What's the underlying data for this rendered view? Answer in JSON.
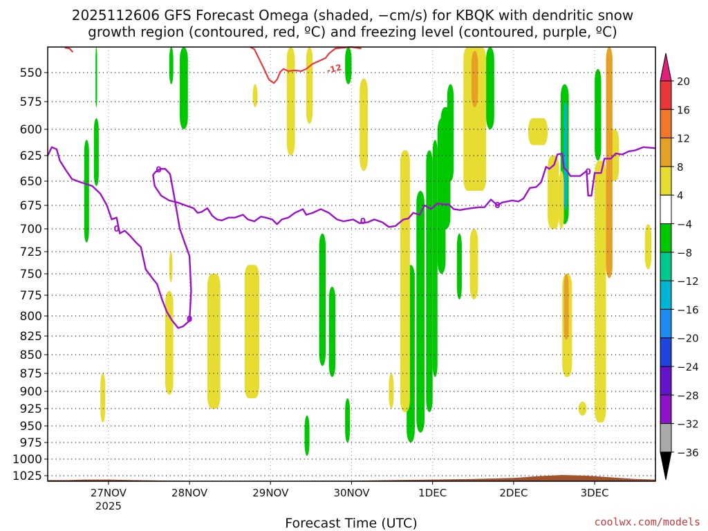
{
  "title": {
    "line1": "2025112606 GFS Forecast Omega (shaded, −cm/s) for KBQK with dendritic snow",
    "line2": "growth region (contoured, red, ºC) and freezing level (contoured, purple, ºC)"
  },
  "xlabel": "Forecast Time (UTC)",
  "credit": "coolwx.com/models",
  "chart_data": {
    "type": "heatmap",
    "title": "2025112606 GFS Forecast Omega (shaded, −cm/s) for KBQK with dendritic snow growth region (contoured, red, ºC) and freezing level (contoured, purple, ºC)",
    "xlabel": "Forecast Time (UTC)",
    "ylabel": "",
    "x_unit": "days after 2025-11-26 00Z (display helper: 0 = 27NOV 00Z)",
    "xlim": [
      -0.75,
      6.75
    ],
    "ylim": [
      515,
      1035
    ],
    "y_scale": "pressure (hPa), decreasing upward",
    "grid": true,
    "y_ticks": [
      550,
      575,
      600,
      625,
      650,
      675,
      700,
      725,
      750,
      775,
      800,
      825,
      850,
      875,
      900,
      925,
      950,
      975,
      1000,
      1025
    ],
    "x_ticks": [
      {
        "x": 0,
        "label": "27NOV",
        "sub": "2025"
      },
      {
        "x": 1,
        "label": "28NOV",
        "sub": ""
      },
      {
        "x": 2,
        "label": "29NOV",
        "sub": ""
      },
      {
        "x": 3,
        "label": "30NOV",
        "sub": ""
      },
      {
        "x": 4,
        "label": "1DEC",
        "sub": ""
      },
      {
        "x": 5,
        "label": "2DEC",
        "sub": ""
      },
      {
        "x": 6,
        "label": "3DEC",
        "sub": ""
      }
    ],
    "colorbar": {
      "labels": [
        "20",
        "16",
        "12",
        "8",
        "4",
        "−4",
        "−8",
        "−12",
        "−16",
        "−20",
        "−24",
        "−28",
        "−32",
        "−36"
      ],
      "colors": [
        "#e8383c",
        "#f07828",
        "#e6a028",
        "#e6dc32",
        "#ffffff",
        "#00c800",
        "#00c88c",
        "#00b4d2",
        "#1e8cf0",
        "#1e46dc",
        "#6414c8",
        "#8c14c8",
        "#aaaaaa"
      ],
      "top_arrow_color": "#e0207a",
      "bottom_arrow_color": "#000000"
    },
    "omega_cells": [
      {
        "x0": -0.16,
        "x1": -0.14,
        "p0": 515,
        "p1": 580,
        "v": -6
      },
      {
        "x0": -0.3,
        "x1": -0.24,
        "p0": 610,
        "p1": 715,
        "v": -6
      },
      {
        "x0": -0.18,
        "x1": -0.12,
        "p0": 590,
        "p1": 655,
        "v": -6
      },
      {
        "x0": 0.75,
        "x1": 0.8,
        "p0": 515,
        "p1": 560,
        "v": -6
      },
      {
        "x0": 0.88,
        "x1": 0.98,
        "p0": 515,
        "p1": 600,
        "v": -6
      },
      {
        "x0": 2.92,
        "x1": 3.0,
        "p0": 515,
        "p1": 560,
        "v": -6
      },
      {
        "x0": 2.6,
        "x1": 2.68,
        "p0": 705,
        "p1": 865,
        "v": -6
      },
      {
        "x0": 2.72,
        "x1": 2.8,
        "p0": 765,
        "p1": 880,
        "v": -6
      },
      {
        "x0": 2.42,
        "x1": 2.48,
        "p0": 935,
        "p1": 995,
        "v": -6
      },
      {
        "x0": 2.92,
        "x1": 2.98,
        "p0": 910,
        "p1": 975,
        "v": -6
      },
      {
        "x0": 3.68,
        "x1": 3.78,
        "p0": 740,
        "p1": 975,
        "v": -6
      },
      {
        "x0": 3.8,
        "x1": 3.9,
        "p0": 660,
        "p1": 960,
        "v": -6
      },
      {
        "x0": 3.92,
        "x1": 4.0,
        "p0": 620,
        "p1": 930,
        "v": -6
      },
      {
        "x0": 4.0,
        "x1": 4.06,
        "p0": 610,
        "p1": 880,
        "v": -6
      },
      {
        "x0": 4.06,
        "x1": 4.16,
        "p0": 590,
        "p1": 750,
        "v": -6
      },
      {
        "x0": 4.1,
        "x1": 4.22,
        "p0": 580,
        "p1": 700,
        "v": -6
      },
      {
        "x0": 4.18,
        "x1": 4.26,
        "p0": 560,
        "p1": 650,
        "v": -6
      },
      {
        "x0": 4.3,
        "x1": 4.36,
        "p0": 705,
        "p1": 780,
        "v": -6
      },
      {
        "x0": 4.66,
        "x1": 4.76,
        "p0": 515,
        "p1": 600,
        "v": -6
      },
      {
        "x0": 5.58,
        "x1": 5.68,
        "p0": 560,
        "p1": 695,
        "v": -6
      },
      {
        "x0": 6.0,
        "x1": 6.08,
        "p0": 545,
        "p1": 630,
        "v": -6
      },
      {
        "x0": 5.62,
        "x1": 5.66,
        "p0": 575,
        "p1": 680,
        "v": -12
      },
      {
        "x0": -0.1,
        "x1": -0.04,
        "p0": 875,
        "p1": 945,
        "v": 6
      },
      {
        "x0": 1.22,
        "x1": 1.38,
        "p0": 750,
        "p1": 925,
        "v": 6
      },
      {
        "x0": 0.7,
        "x1": 0.8,
        "p0": 770,
        "p1": 905,
        "v": 6
      },
      {
        "x0": 0.75,
        "x1": 0.79,
        "p0": 725,
        "p1": 760,
        "v": 6
      },
      {
        "x0": 1.68,
        "x1": 1.86,
        "p0": 740,
        "p1": 910,
        "v": 6
      },
      {
        "x0": 1.78,
        "x1": 1.84,
        "p0": 560,
        "p1": 580,
        "v": 6
      },
      {
        "x0": 2.2,
        "x1": 2.3,
        "p0": 515,
        "p1": 625,
        "v": 6
      },
      {
        "x0": 2.44,
        "x1": 2.52,
        "p0": 515,
        "p1": 595,
        "v": 6
      },
      {
        "x0": 3.1,
        "x1": 3.2,
        "p0": 555,
        "p1": 640,
        "v": 6
      },
      {
        "x0": 3.46,
        "x1": 3.52,
        "p0": 875,
        "p1": 925,
        "v": 6
      },
      {
        "x0": 3.6,
        "x1": 3.72,
        "p0": 620,
        "p1": 930,
        "v": 6
      },
      {
        "x0": 4.38,
        "x1": 4.66,
        "p0": 515,
        "p1": 660,
        "v": 6
      },
      {
        "x0": 4.46,
        "x1": 4.56,
        "p0": 700,
        "p1": 780,
        "v": 6
      },
      {
        "x0": 5.18,
        "x1": 5.42,
        "p0": 590,
        "p1": 615,
        "v": 6
      },
      {
        "x0": 5.42,
        "x1": 5.56,
        "p0": 625,
        "p1": 700,
        "v": 6
      },
      {
        "x0": 5.56,
        "x1": 5.62,
        "p0": 640,
        "p1": 700,
        "v": 6
      },
      {
        "x0": 5.6,
        "x1": 5.72,
        "p0": 750,
        "p1": 880,
        "v": 6
      },
      {
        "x0": 5.8,
        "x1": 5.9,
        "p0": 915,
        "p1": 935,
        "v": 6
      },
      {
        "x0": 6.0,
        "x1": 6.14,
        "p0": 630,
        "p1": 945,
        "v": 6
      },
      {
        "x0": 6.14,
        "x1": 6.3,
        "p0": 600,
        "p1": 650,
        "v": 6
      },
      {
        "x0": 6.62,
        "x1": 6.7,
        "p0": 695,
        "p1": 745,
        "v": 6
      },
      {
        "x0": 4.48,
        "x1": 4.56,
        "p0": 520,
        "p1": 580,
        "v": 10
      },
      {
        "x0": 5.62,
        "x1": 5.68,
        "p0": 750,
        "p1": 830,
        "v": 10
      },
      {
        "x0": 6.14,
        "x1": 6.22,
        "p0": 515,
        "p1": 755,
        "v": 10
      }
    ],
    "freezing_level_0C": [
      [
        -0.75,
        625
      ],
      [
        -0.7,
        617
      ],
      [
        -0.64,
        619
      ],
      [
        -0.6,
        630
      ],
      [
        -0.52,
        640
      ],
      [
        -0.45,
        648
      ],
      [
        -0.35,
        651
      ],
      [
        -0.2,
        655
      ],
      [
        -0.1,
        663
      ],
      [
        -0.02,
        675
      ],
      [
        0.04,
        690
      ],
      [
        0.1,
        688
      ],
      [
        0.14,
        705
      ],
      [
        0.2,
        702
      ],
      [
        0.26,
        707
      ],
      [
        0.34,
        715
      ],
      [
        0.4,
        720
      ],
      [
        0.46,
        745
      ],
      [
        0.54,
        755
      ],
      [
        0.6,
        762
      ],
      [
        0.66,
        780
      ],
      [
        0.72,
        795
      ],
      [
        0.78,
        805
      ],
      [
        0.86,
        815
      ],
      [
        0.92,
        813
      ],
      [
        1.0,
        806
      ],
      [
        1.02,
        770
      ],
      [
        1.0,
        730
      ],
      [
        0.94,
        715
      ],
      [
        0.88,
        700
      ],
      [
        0.82,
        670
      ],
      [
        0.76,
        643
      ],
      [
        0.7,
        638
      ],
      [
        0.64,
        638
      ],
      [
        0.58,
        641
      ],
      [
        0.55,
        644
      ],
      [
        0.57,
        655
      ],
      [
        0.65,
        665
      ],
      [
        0.75,
        670
      ],
      [
        0.85,
        672
      ],
      [
        0.95,
        675
      ],
      [
        1.05,
        678
      ],
      [
        1.1,
        683
      ],
      [
        1.15,
        682
      ],
      [
        1.22,
        678
      ],
      [
        1.28,
        686
      ],
      [
        1.34,
        690
      ],
      [
        1.4,
        691
      ],
      [
        1.48,
        688
      ],
      [
        1.56,
        688
      ],
      [
        1.66,
        685
      ],
      [
        1.72,
        690
      ],
      [
        1.8,
        692
      ],
      [
        1.88,
        687
      ],
      [
        1.94,
        688
      ],
      [
        2.02,
        690
      ],
      [
        2.08,
        695
      ],
      [
        2.14,
        690
      ],
      [
        2.22,
        688
      ],
      [
        2.3,
        683
      ],
      [
        2.4,
        679
      ],
      [
        2.44,
        685
      ],
      [
        2.52,
        683
      ],
      [
        2.62,
        679
      ],
      [
        2.72,
        683
      ],
      [
        2.82,
        690
      ],
      [
        2.9,
        692
      ],
      [
        2.96,
        691
      ],
      [
        3.02,
        690
      ],
      [
        3.1,
        694
      ],
      [
        3.2,
        693
      ],
      [
        3.28,
        690
      ],
      [
        3.38,
        693
      ],
      [
        3.46,
        698
      ],
      [
        3.54,
        697
      ],
      [
        3.64,
        690
      ],
      [
        3.7,
        689
      ],
      [
        3.76,
        683
      ],
      [
        3.84,
        685
      ],
      [
        3.9,
        675
      ],
      [
        3.98,
        679
      ],
      [
        4.06,
        673
      ],
      [
        4.14,
        674
      ],
      [
        4.2,
        674
      ],
      [
        4.26,
        679
      ],
      [
        4.34,
        680
      ],
      [
        4.4,
        679
      ],
      [
        4.48,
        678
      ],
      [
        4.58,
        677
      ],
      [
        4.64,
        677
      ],
      [
        4.72,
        669
      ],
      [
        4.8,
        675
      ],
      [
        4.86,
        672
      ],
      [
        4.92,
        671
      ],
      [
        4.98,
        670
      ],
      [
        5.06,
        671
      ],
      [
        5.12,
        668
      ],
      [
        5.2,
        657
      ],
      [
        5.28,
        656
      ],
      [
        5.34,
        651
      ],
      [
        5.4,
        636
      ],
      [
        5.44,
        638
      ],
      [
        5.5,
        634
      ],
      [
        5.54,
        624
      ],
      [
        5.6,
        623
      ],
      [
        5.62,
        637
      ],
      [
        5.66,
        640
      ],
      [
        5.7,
        645
      ],
      [
        5.74,
        645
      ],
      [
        5.82,
        645
      ],
      [
        5.9,
        640
      ],
      [
        5.92,
        665
      ],
      [
        5.96,
        665
      ],
      [
        6.0,
        642
      ],
      [
        6.08,
        642
      ],
      [
        6.12,
        628
      ],
      [
        6.2,
        628
      ],
      [
        6.26,
        623
      ],
      [
        6.34,
        624
      ],
      [
        6.42,
        621
      ],
      [
        6.5,
        620
      ],
      [
        6.6,
        617
      ],
      [
        6.75,
        618
      ]
    ],
    "dgz_minus12C": [
      [
        -0.54,
        516
      ],
      [
        -0.48,
        517
      ],
      [
        -0.44,
        522
      ],
      [
        1.75,
        515
      ],
      [
        1.8,
        518
      ],
      [
        1.84,
        527
      ],
      [
        1.88,
        536
      ],
      [
        1.92,
        545
      ],
      [
        1.98,
        556
      ],
      [
        2.04,
        559
      ],
      [
        2.08,
        556
      ],
      [
        2.12,
        549
      ],
      [
        2.16,
        545
      ],
      [
        2.22,
        548
      ],
      [
        2.3,
        547
      ],
      [
        2.38,
        548
      ],
      [
        2.44,
        545
      ],
      [
        2.52,
        538
      ],
      [
        2.6,
        534
      ],
      [
        2.68,
        530
      ],
      [
        2.72,
        524
      ],
      [
        2.8,
        517
      ],
      [
        2.9,
        516
      ],
      [
        3.0,
        515
      ],
      [
        3.12,
        517
      ]
    ],
    "ground_1025_baseline": [
      [
        -0.75,
        1033
      ],
      [
        -0.5,
        1033
      ],
      [
        -0.3,
        1032
      ],
      [
        0.0,
        1032
      ],
      [
        0.3,
        1033
      ],
      [
        0.8,
        1034
      ],
      [
        1.3,
        1035
      ],
      [
        2.0,
        1035
      ],
      [
        2.6,
        1034
      ],
      [
        3.0,
        1034
      ],
      [
        3.5,
        1033
      ],
      [
        4.0,
        1032
      ],
      [
        4.5,
        1031
      ],
      [
        5.0,
        1029
      ],
      [
        5.3,
        1026
      ],
      [
        5.6,
        1024
      ],
      [
        5.9,
        1025
      ],
      [
        6.2,
        1028
      ],
      [
        6.5,
        1031
      ],
      [
        6.75,
        1032
      ]
    ]
  }
}
